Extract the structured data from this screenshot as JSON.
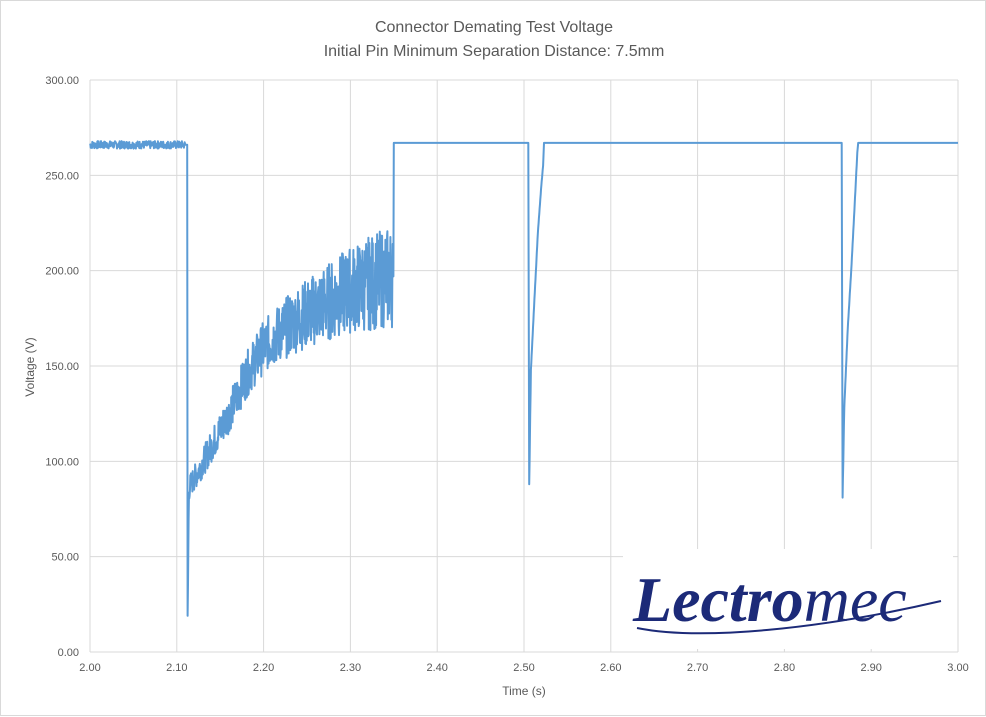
{
  "chart_data": {
    "type": "line",
    "title": "Connector Demating Test Voltage",
    "subtitle": "Initial Pin Minimum Separation Distance: 7.5mm",
    "xlabel": "Time (s)",
    "ylabel": "Voltage (V)",
    "xlim": [
      2.0,
      3.0
    ],
    "ylim": [
      0,
      300
    ],
    "x_ticks": [
      "2.00",
      "2.10",
      "2.20",
      "2.30",
      "2.40",
      "2.50",
      "2.60",
      "2.70",
      "2.80",
      "2.90",
      "3.00"
    ],
    "y_ticks": [
      "0.00",
      "50.00",
      "100.00",
      "150.00",
      "200.00",
      "250.00",
      "300.00"
    ],
    "grid": "vertical and horizontal",
    "legend": "none",
    "series_color": "#5b9bd5",
    "series": [
      {
        "x": [
          2.0,
          2.112,
          2.1125,
          2.114,
          2.116,
          2.125,
          2.14,
          2.16,
          2.18,
          2.2,
          2.22,
          2.24,
          2.26,
          2.28,
          2.3,
          2.32,
          2.34,
          2.3495,
          2.35,
          2.505,
          2.506,
          2.508,
          2.512,
          2.516,
          2.52,
          2.522,
          2.523,
          2.866,
          2.867,
          2.869,
          2.873,
          2.877,
          2.881,
          2.884,
          2.885,
          3.0
        ],
        "y": [
          266,
          266,
          19,
          85,
          88,
          95,
          108,
          125,
          145,
          160,
          168,
          175,
          180,
          185,
          190,
          193,
          196,
          197,
          267,
          267,
          88,
          148,
          185,
          220,
          245,
          255,
          267,
          267,
          81,
          128,
          170,
          200,
          235,
          262,
          267,
          267
        ]
      }
    ]
  },
  "logo": {
    "text_bold": "Lectro",
    "text_light": "mec",
    "color": "#1c2a78"
  }
}
